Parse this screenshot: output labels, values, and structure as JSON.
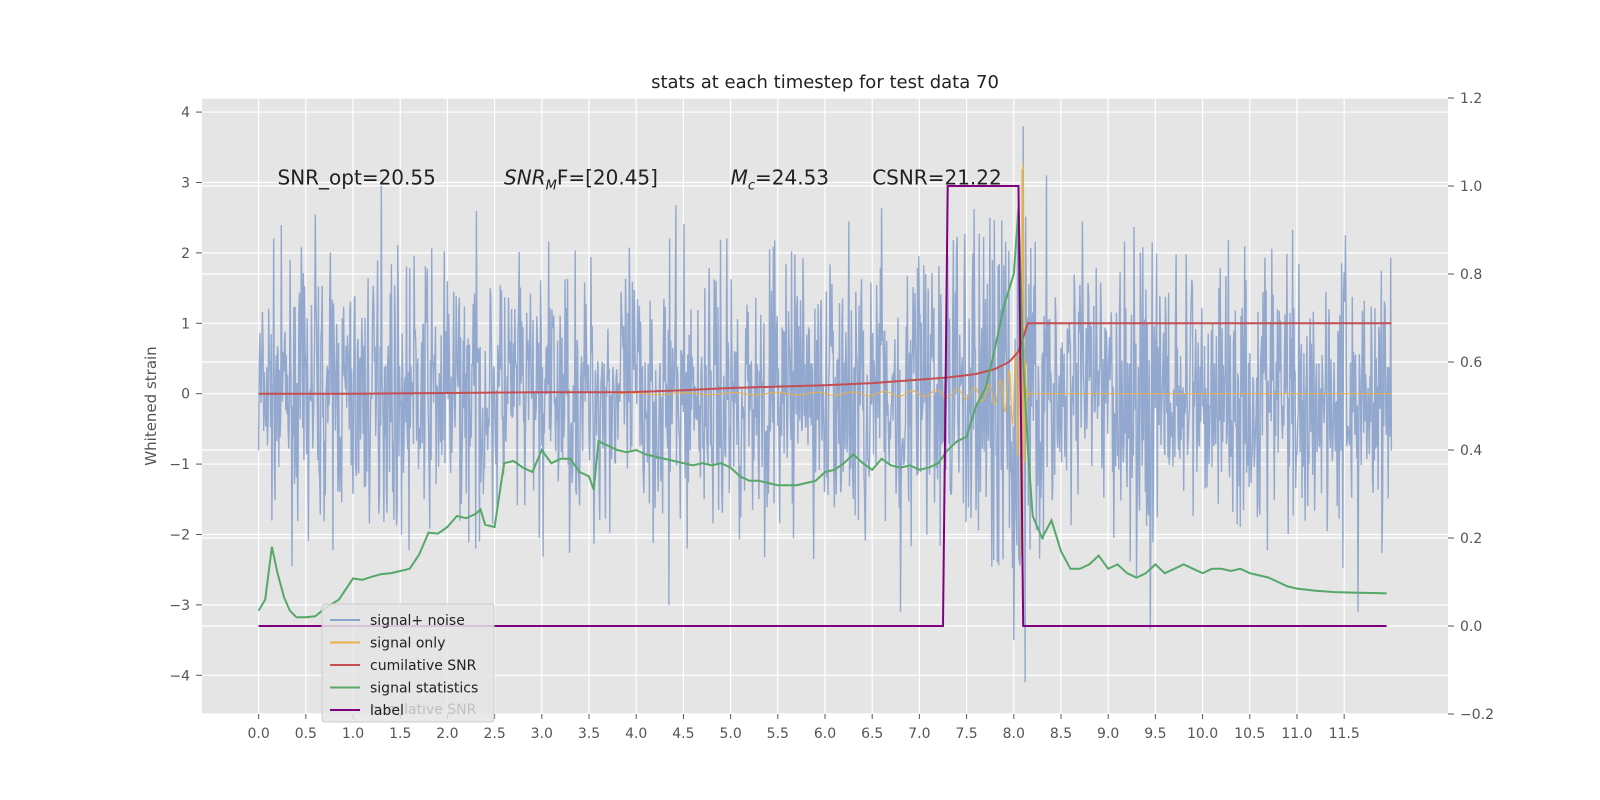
{
  "chart_data": {
    "type": "line",
    "title": "stats at each timestep for test data 70",
    "ylabel": "Whitened strain",
    "xlim": [
      -0.6,
      12.6
    ],
    "ylim_left": [
      -4.55,
      4.2
    ],
    "ylim_right": [
      -0.2,
      1.2
    ],
    "x_ticks": [
      0.0,
      0.5,
      1.0,
      1.5,
      2.0,
      2.5,
      3.0,
      3.5,
      4.0,
      4.5,
      5.0,
      5.5,
      6.0,
      6.5,
      7.0,
      7.5,
      8.0,
      8.5,
      9.0,
      9.5,
      10.0,
      10.5,
      11.0,
      11.5
    ],
    "x_tick_labels": [
      "0.0",
      "0.5",
      "1.0",
      "1.5",
      "2.0",
      "2.5",
      "3.0",
      "3.5",
      "4.0",
      "4.5",
      "5.0",
      "5.5",
      "6.0",
      "6.5",
      "7.0",
      "7.5",
      "8.0",
      "8.5",
      "9.0",
      "9.5",
      "10.0",
      "10.5",
      "11.0",
      "11.5"
    ],
    "y_left_ticks": [
      -4,
      -3,
      -2,
      -1,
      0,
      1,
      2,
      3,
      4
    ],
    "y_left_tick_labels": [
      "−4",
      "−3",
      "−2",
      "−1",
      "0",
      "1",
      "2",
      "3",
      "4"
    ],
    "y_right_ticks": [
      -0.2,
      0.0,
      0.2,
      0.4,
      0.6,
      0.8,
      1.0,
      1.2
    ],
    "y_right_tick_labels": [
      "−0.2",
      "0.0",
      "0.2",
      "0.4",
      "0.6",
      "0.8",
      "1.0",
      "1.2"
    ],
    "grid": true,
    "legend_position": "lower-left",
    "annotations": [
      {
        "key": "snr_opt",
        "text": "SNR_opt=20.55",
        "x": 0.2
      },
      {
        "key": "snr_mf",
        "text": "SNR",
        "sub": "M",
        "rest": "F=[20.45]",
        "italic": true,
        "x": 2.6
      },
      {
        "key": "mc",
        "text": "M",
        "sub": "c",
        "rest": "=24.53",
        "italic": true,
        "x": 5.0
      },
      {
        "key": "csnr",
        "text": "CSNR=21.22",
        "x": 6.5
      }
    ],
    "annotation_y": 3.0,
    "series": [
      {
        "name": "signal+ noise",
        "axis": "left",
        "color": "#8da4cc",
        "kind": "noise",
        "x_range": [
          0.0,
          12.0
        ],
        "envelope": [
          [
            0.0,
            1.3
          ],
          [
            1.0,
            1.4
          ],
          [
            2.0,
            1.5
          ],
          [
            4.0,
            1.5
          ],
          [
            6.0,
            1.6
          ],
          [
            7.0,
            1.7
          ],
          [
            7.5,
            1.9
          ],
          [
            7.9,
            2.4
          ],
          [
            8.05,
            3.6
          ],
          [
            8.1,
            3.8
          ],
          [
            8.15,
            2.6
          ],
          [
            8.3,
            1.7
          ],
          [
            10.0,
            1.6
          ],
          [
            12.0,
            1.6
          ]
        ],
        "spikes": [
          [
            1.3,
            2.95
          ],
          [
            0.6,
            2.55
          ],
          [
            7.75,
            2.5
          ],
          [
            8.1,
            3.8
          ],
          [
            8.12,
            -4.1
          ],
          [
            8.35,
            3.1
          ],
          [
            9.45,
            -3.35
          ],
          [
            6.0,
            -1.0
          ],
          [
            4.35,
            -3.0
          ],
          [
            6.8,
            -3.1
          ],
          [
            11.65,
            -3.1
          ],
          [
            8.0,
            -3.5
          ]
        ]
      },
      {
        "name": "signal only",
        "axis": "left",
        "color": "#e8b04b",
        "kind": "chirp",
        "x_range": [
          3.8,
          12.0
        ],
        "merger_x": 8.1,
        "peak_amplitude": 3.4
      },
      {
        "name": "cumilative SNR",
        "axis": "left",
        "color": "#c44e52",
        "x": [
          0.0,
          1.0,
          2.0,
          3.0,
          3.9,
          4.5,
          5.0,
          5.5,
          6.0,
          6.5,
          7.0,
          7.3,
          7.6,
          7.8,
          7.95,
          8.05,
          8.1,
          8.15,
          12.0
        ],
        "y": [
          0.0,
          0.0,
          0.01,
          0.02,
          0.02,
          0.05,
          0.08,
          0.1,
          0.12,
          0.15,
          0.2,
          0.23,
          0.28,
          0.35,
          0.45,
          0.6,
          0.8,
          1.0,
          1.0
        ]
      },
      {
        "name": "signal statistics",
        "axis": "right",
        "color": "#55a868",
        "x": [
          0.0,
          0.07,
          0.14,
          0.2,
          0.27,
          0.33,
          0.4,
          0.5,
          0.6,
          0.7,
          0.85,
          1.0,
          1.1,
          1.2,
          1.3,
          1.4,
          1.5,
          1.6,
          1.7,
          1.8,
          1.9,
          2.0,
          2.1,
          2.2,
          2.3,
          2.35,
          2.4,
          2.5,
          2.6,
          2.7,
          2.8,
          2.9,
          3.0,
          3.1,
          3.2,
          3.3,
          3.4,
          3.5,
          3.55,
          3.6,
          3.7,
          3.8,
          3.9,
          4.0,
          4.1,
          4.2,
          4.3,
          4.4,
          4.5,
          4.6,
          4.7,
          4.8,
          4.9,
          5.0,
          5.1,
          5.2,
          5.3,
          5.4,
          5.5,
          5.6,
          5.7,
          5.8,
          5.9,
          6.0,
          6.1,
          6.2,
          6.3,
          6.4,
          6.5,
          6.6,
          6.7,
          6.8,
          6.9,
          7.0,
          7.1,
          7.2,
          7.3,
          7.4,
          7.5,
          7.6,
          7.7,
          7.8,
          7.9,
          8.0,
          8.05,
          8.1,
          8.15,
          8.2,
          8.3,
          8.4,
          8.5,
          8.6,
          8.7,
          8.8,
          8.9,
          9.0,
          9.1,
          9.2,
          9.3,
          9.4,
          9.5,
          9.6,
          9.7,
          9.8,
          9.9,
          10.0,
          10.1,
          10.2,
          10.3,
          10.4,
          10.5,
          10.6,
          10.7,
          10.8,
          10.9,
          11.0,
          11.2,
          11.4,
          11.6,
          11.8,
          11.95
        ],
        "y": [
          0.035,
          0.06,
          0.18,
          0.12,
          0.065,
          0.035,
          0.02,
          0.02,
          0.022,
          0.04,
          0.06,
          0.108,
          0.105,
          0.112,
          0.118,
          0.12,
          0.125,
          0.13,
          0.162,
          0.212,
          0.21,
          0.225,
          0.25,
          0.245,
          0.255,
          0.265,
          0.23,
          0.225,
          0.37,
          0.375,
          0.36,
          0.35,
          0.4,
          0.37,
          0.38,
          0.38,
          0.35,
          0.34,
          0.31,
          0.42,
          0.41,
          0.4,
          0.395,
          0.4,
          0.39,
          0.385,
          0.38,
          0.375,
          0.37,
          0.365,
          0.37,
          0.365,
          0.37,
          0.36,
          0.34,
          0.33,
          0.33,
          0.325,
          0.32,
          0.32,
          0.32,
          0.325,
          0.33,
          0.35,
          0.355,
          0.37,
          0.39,
          0.37,
          0.355,
          0.38,
          0.365,
          0.36,
          0.365,
          0.355,
          0.36,
          0.37,
          0.4,
          0.42,
          0.43,
          0.5,
          0.54,
          0.63,
          0.73,
          0.8,
          0.95,
          0.6,
          0.4,
          0.25,
          0.2,
          0.24,
          0.17,
          0.13,
          0.13,
          0.14,
          0.16,
          0.13,
          0.14,
          0.12,
          0.11,
          0.12,
          0.14,
          0.12,
          0.13,
          0.14,
          0.13,
          0.12,
          0.13,
          0.13,
          0.125,
          0.13,
          0.12,
          0.115,
          0.11,
          0.1,
          0.09,
          0.085,
          0.08,
          0.077,
          0.076,
          0.075,
          0.074
        ]
      },
      {
        "name": "label",
        "axis": "right",
        "color": "#800080",
        "x": [
          0.0,
          7.25,
          7.3,
          8.05,
          8.1,
          11.95
        ],
        "y": [
          0.0,
          0.0,
          1.0,
          1.0,
          0.0,
          0.0
        ]
      }
    ],
    "legend_ghost_text": "cumilative SNR"
  }
}
